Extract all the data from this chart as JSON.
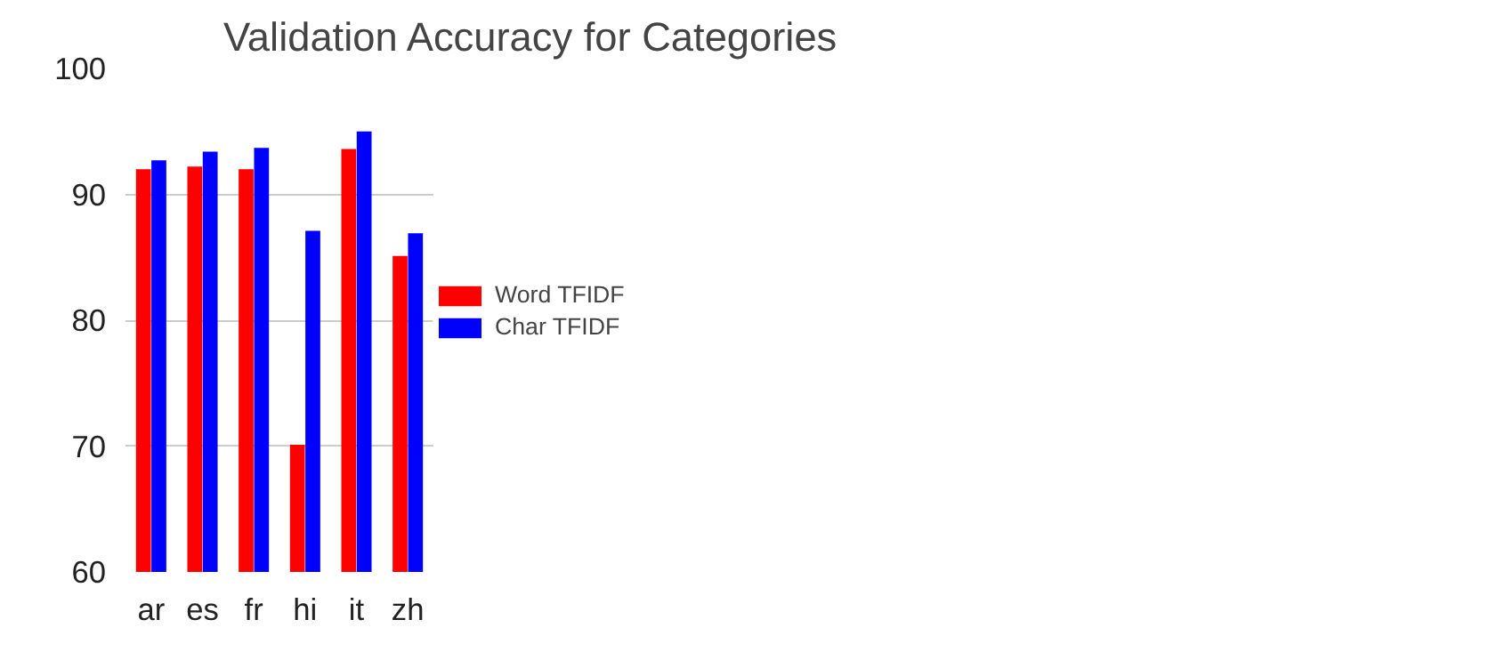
{
  "chart_data": {
    "type": "bar",
    "title": "Validation Accuracy for Categories",
    "categories": [
      "ar",
      "es",
      "fr",
      "hi",
      "it",
      "zh"
    ],
    "series": [
      {
        "name": "Word TFIDF",
        "color": "#ff0000",
        "values": [
          92.0,
          92.2,
          92.0,
          70.1,
          93.6,
          85.1
        ]
      },
      {
        "name": "Char TFIDF",
        "color": "#0000ff",
        "values": [
          92.7,
          93.4,
          93.7,
          87.1,
          95.0,
          86.9
        ]
      }
    ],
    "ylim": [
      60,
      100
    ],
    "yticks": [
      60,
      70,
      80,
      90,
      100
    ],
    "grid": "y",
    "legend": "top right"
  }
}
